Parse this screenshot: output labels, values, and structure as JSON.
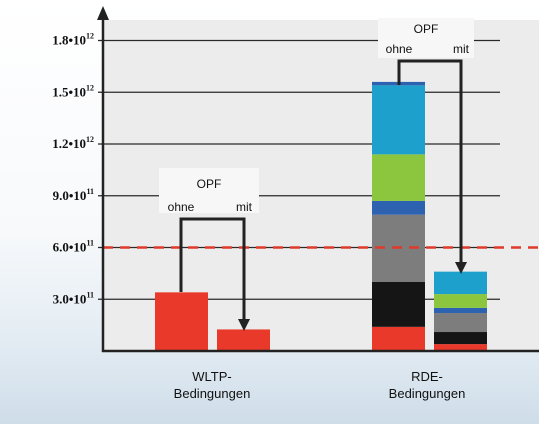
{
  "chart_data": {
    "type": "bar",
    "stacked": true,
    "ylim": [
      0,
      2000000000000
    ],
    "y_ticks": [
      {
        "value": 300000000000,
        "mantissa": "3.0",
        "exponent": "11"
      },
      {
        "value": 600000000000,
        "mantissa": "6.0",
        "exponent": "11"
      },
      {
        "value": 900000000000,
        "mantissa": "9.0",
        "exponent": "11"
      },
      {
        "value": 1200000000000,
        "mantissa": "1.2",
        "exponent": "12"
      },
      {
        "value": 1500000000000,
        "mantissa": "1.5",
        "exponent": "12"
      },
      {
        "value": 1800000000000,
        "mantissa": "1.8",
        "exponent": "12"
      }
    ],
    "grid": true,
    "reference_line": {
      "value": 600000000000,
      "color": "#e03a2a",
      "style": "dashed"
    },
    "groups": [
      {
        "label_lines": [
          "WLTP-",
          "Bedingungen"
        ],
        "opf_label": "OPF",
        "ohne_label": "ohne",
        "mit_label": "mit",
        "bars": [
          {
            "segments": [
              {
                "value": 340000000000,
                "color": "#e8392b"
              }
            ]
          },
          {
            "segments": [
              {
                "value": 125000000000,
                "color": "#e8392b"
              }
            ]
          }
        ]
      },
      {
        "label_lines": [
          "RDE-",
          "Bedingungen"
        ],
        "opf_label": "OPF",
        "ohne_label": "ohne",
        "mit_label": "mit",
        "bars": [
          {
            "segments": [
              {
                "value": 140000000000,
                "color": "#e8392b"
              },
              {
                "value": 260000000000,
                "color": "#151515"
              },
              {
                "value": 390000000000,
                "color": "#7d7d7d"
              },
              {
                "value": 80000000000,
                "color": "#2d62b0"
              },
              {
                "value": 270000000000,
                "color": "#8cc63f"
              },
              {
                "value": 400000000000,
                "color": "#1ea0cc"
              },
              {
                "value": 20000000000,
                "color": "#2d62b0"
              }
            ]
          },
          {
            "segments": [
              {
                "value": 40000000000,
                "color": "#e8392b"
              },
              {
                "value": 70000000000,
                "color": "#151515"
              },
              {
                "value": 110000000000,
                "color": "#7d7d7d"
              },
              {
                "value": 30000000000,
                "color": "#2d62b0"
              },
              {
                "value": 80000000000,
                "color": "#8cc63f"
              },
              {
                "value": 130000000000,
                "color": "#1ea0cc"
              }
            ]
          }
        ]
      }
    ]
  }
}
